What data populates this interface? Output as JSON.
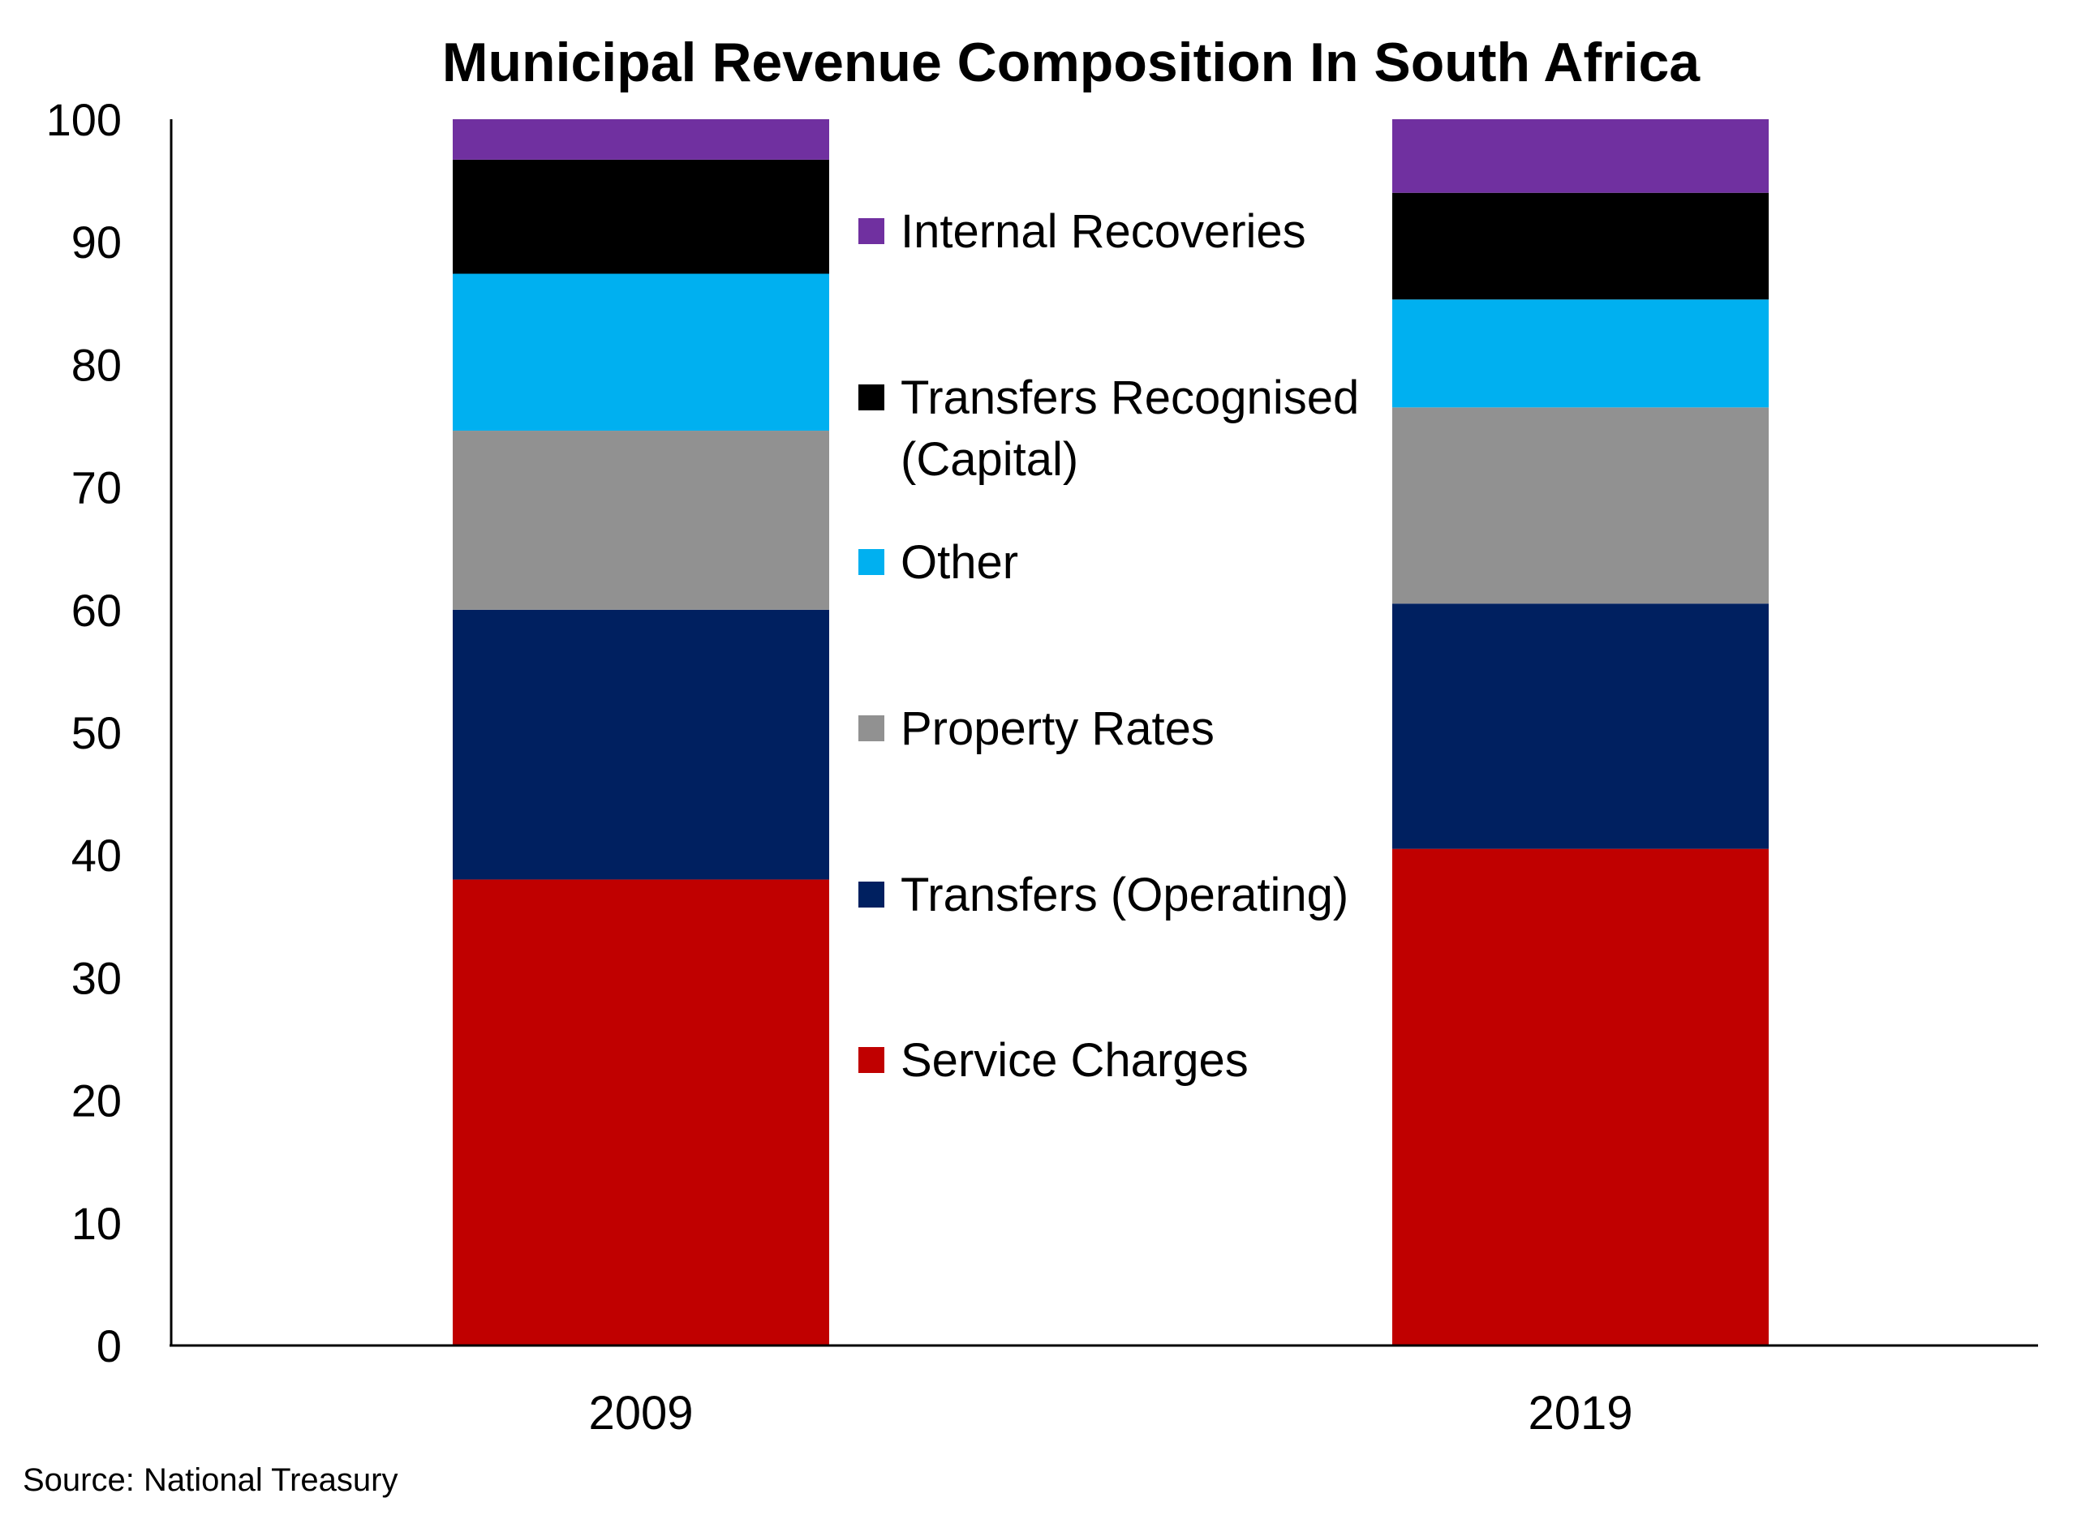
{
  "chart_data": {
    "type": "bar",
    "stacked": true,
    "title": "Municipal Revenue Composition In South Africa",
    "source": "Source: National Treasury",
    "categories": [
      "2009",
      "2019"
    ],
    "ylim": [
      0,
      100
    ],
    "yticks": [
      "0",
      "10",
      "20",
      "30",
      "40",
      "50",
      "60",
      "70",
      "80",
      "90",
      "100"
    ],
    "grid": false,
    "legend_position": "center",
    "series": [
      {
        "name": "Service Charges",
        "color": "#c00000",
        "values": [
          38,
          40.5
        ]
      },
      {
        "name": "Transfers (Operating)",
        "color": "#002060",
        "values": [
          22,
          20
        ]
      },
      {
        "name": "Property Rates",
        "color": "#919191",
        "values": [
          14.6,
          16
        ]
      },
      {
        "name": "Other",
        "color": "#00b0f0",
        "values": [
          12.8,
          8.8
        ]
      },
      {
        "name": "Transfers Recognised (Capital)",
        "color": "#000000",
        "values": [
          9.3,
          8.7
        ]
      },
      {
        "name": "Internal Recoveries",
        "color": "#7030a0",
        "values": [
          3.3,
          6
        ]
      }
    ],
    "legend_lines": [
      [
        "Internal Recoveries"
      ],
      [
        "Transfers Recognised",
        "(Capital)"
      ],
      [
        "Other"
      ],
      [
        "Property Rates"
      ],
      [
        "Transfers (Operating)"
      ],
      [
        "Service Charges"
      ]
    ]
  }
}
